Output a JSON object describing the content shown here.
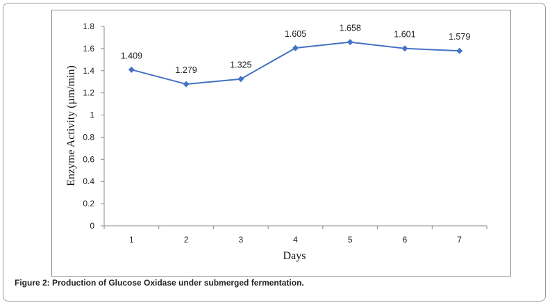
{
  "chart_data": {
    "type": "line",
    "categories": [
      "1",
      "2",
      "3",
      "4",
      "5",
      "6",
      "7"
    ],
    "series": [
      {
        "values": [
          1.409,
          1.279,
          1.325,
          1.605,
          1.658,
          1.601,
          1.579
        ]
      }
    ],
    "data_labels": [
      "1.409",
      "1.279",
      "1.325",
      "1.605",
      "1.658",
      "1.601",
      "1.579"
    ],
    "xlabel": "Days",
    "ylabel": "Enzyme Activity (µm/min)",
    "ylim": [
      0,
      1.8
    ],
    "yticks": [
      "0",
      "0.2",
      "0.4",
      "0.6",
      "0.8",
      "1",
      "1.2",
      "1.4",
      "1.6",
      "1.8"
    ],
    "grid": false,
    "legend": "none",
    "line_color": "#4472C4"
  },
  "caption": "Figure 2: Production of Glucose Oxidase under submerged fermentation."
}
